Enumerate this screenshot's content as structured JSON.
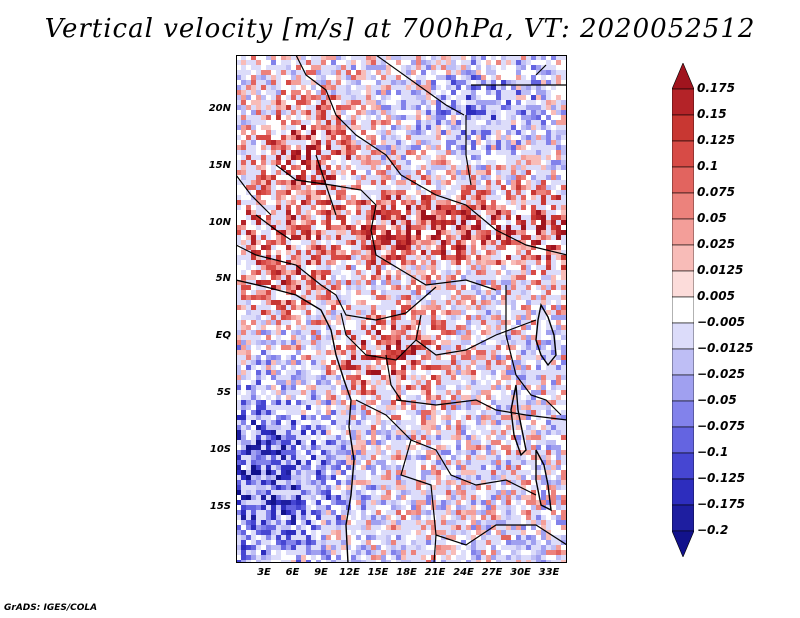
{
  "title": "Vertical velocity [m/s] at 700hPa, VT: 2020052512",
  "credit": "GrADS: IGES/COLA",
  "map": {
    "variable": "Vertical velocity",
    "units": "m/s",
    "level": "700hPa",
    "valid_time": "2020052512",
    "lat_ticks": [
      "20N",
      "15N",
      "10N",
      "5N",
      "EQ",
      "5S",
      "10S",
      "15S"
    ],
    "lon_ticks": [
      "3E",
      "6E",
      "9E",
      "12E",
      "15E",
      "18E",
      "21E",
      "24E",
      "27E",
      "30E",
      "33E"
    ]
  },
  "colorbar": {
    "levels": [
      "0.175",
      "0.15",
      "0.125",
      "0.1",
      "0.075",
      "0.05",
      "0.025",
      "0.0125",
      "0.005",
      "−0.005",
      "−0.0125",
      "−0.025",
      "−0.05",
      "−0.075",
      "−0.1",
      "−0.125",
      "−0.175",
      "−0.2"
    ],
    "colors": [
      "#a0141e",
      "#b42328",
      "#c83732",
      "#d74b46",
      "#e2645f",
      "#ec827c",
      "#f39e99",
      "#f8bcb8",
      "#fcdcda",
      "#ffffff",
      "#dcdcfa",
      "#bebef5",
      "#a0a0f0",
      "#8282eb",
      "#6464e1",
      "#4646d2",
      "#2d2dbe",
      "#1e1ea0",
      "#12128c"
    ]
  }
}
